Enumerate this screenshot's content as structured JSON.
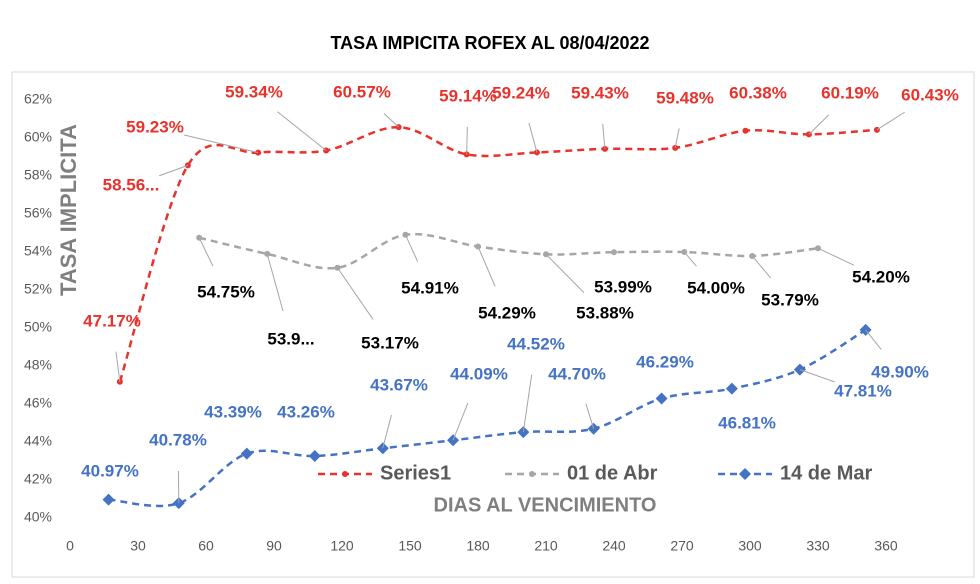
{
  "chart_data": {
    "type": "line",
    "title": "TASA IMPICITA ROFEX AL 08/04/2022",
    "x_label": "DIAS AL VENCIMIENTO",
    "y_label": "TASA IMPLICITA",
    "xlim": [
      0,
      360
    ],
    "xticks": [
      0,
      30,
      60,
      90,
      120,
      150,
      180,
      210,
      240,
      270,
      300,
      330,
      360
    ],
    "ylim": [
      40,
      62
    ],
    "yticks": [
      {
        "value": 40,
        "label": "40%"
      },
      {
        "value": 42,
        "label": "42%"
      },
      {
        "value": 44,
        "label": "44%"
      },
      {
        "value": 46,
        "label": "46%"
      },
      {
        "value": 48,
        "label": "48%"
      },
      {
        "value": 50,
        "label": "50%"
      },
      {
        "value": 52,
        "label": "52%"
      },
      {
        "value": 54,
        "label": "54%"
      },
      {
        "value": 56,
        "label": "56%"
      },
      {
        "value": 58,
        "label": "58%"
      },
      {
        "value": 60,
        "label": "60%"
      },
      {
        "value": 62,
        "label": "62%"
      }
    ],
    "series": [
      {
        "name": "Series1",
        "color": "#e8322b",
        "marker": "circle",
        "x": [
          22,
          52,
          83,
          113,
          145,
          175,
          206,
          236,
          267,
          298,
          326,
          356
        ],
        "values": [
          47.17,
          58.56,
          59.23,
          59.34,
          60.57,
          59.14,
          59.24,
          59.43,
          59.48,
          60.38,
          60.19,
          60.43
        ],
        "value_labels": [
          "47.17%",
          "58.56...",
          "59.23%",
          "59.34%",
          "60.57%",
          "59.14%",
          "59.24%",
          "59.43%",
          "59.48%",
          "60.38%",
          "60.19%",
          "60.43%"
        ]
      },
      {
        "name": "01 de Abr",
        "color": "#a6a6a6",
        "marker": "circle",
        "x": [
          57,
          87,
          118,
          148,
          180,
          210,
          240,
          271,
          301,
          330
        ],
        "values": [
          54.75,
          53.9,
          53.17,
          54.91,
          54.29,
          53.88,
          53.99,
          54.0,
          53.79,
          54.2
        ],
        "value_labels": [
          "54.75%",
          "53.9...",
          "53.17%",
          "54.91%",
          "54.29%",
          "53.88%",
          "53.99%",
          "54.00%",
          "53.79%",
          "54.20%"
        ]
      },
      {
        "name": "14 de Mar",
        "color": "#4472c4",
        "marker": "diamond",
        "x": [
          17,
          48,
          78,
          108,
          138,
          169,
          200,
          231,
          261,
          292,
          322,
          351
        ],
        "values": [
          40.97,
          40.78,
          43.39,
          43.26,
          43.67,
          44.09,
          44.52,
          44.7,
          46.29,
          46.81,
          47.81,
          49.9
        ],
        "value_labels": [
          "40.97%",
          "40.78%",
          "43.39%",
          "43.26%",
          "43.67%",
          "44.09%",
          "44.52%",
          "44.70%",
          "46.29%",
          "46.81%",
          "47.81%",
          "49.90%"
        ]
      }
    ]
  }
}
